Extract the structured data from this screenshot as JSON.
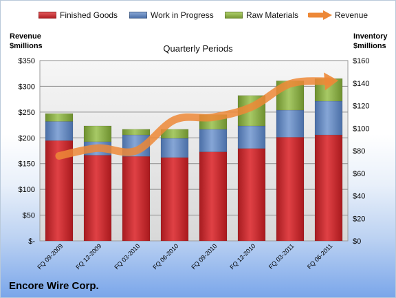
{
  "chart_data": {
    "type": "bar",
    "stacked": true,
    "title": "Quarterly Periods",
    "company": "Encore Wire Corp.",
    "left_axis_title": [
      "Revenue",
      "$millions"
    ],
    "right_axis_title": [
      "Inventory",
      "$millions"
    ],
    "categories": [
      "FQ 09-2009",
      "FQ 12-2009",
      "FQ 03-2010",
      "FQ 06-2010",
      "FQ 09-2010",
      "FQ 12-2010",
      "FQ 03-2011",
      "FQ 06-2011"
    ],
    "y_left": {
      "min": 0,
      "max": 350,
      "ticks": [
        0,
        50,
        100,
        150,
        200,
        250,
        300,
        350
      ],
      "tick_labels": [
        "$-",
        "$50",
        "$100",
        "$150",
        "$200",
        "$250",
        "$300",
        "$350"
      ]
    },
    "y_right": {
      "min": 0,
      "max": 160,
      "ticks": [
        0,
        20,
        40,
        60,
        80,
        100,
        120,
        140,
        160
      ],
      "tick_labels": [
        "$0",
        "$20",
        "$40",
        "$60",
        "$80",
        "$100",
        "$120",
        "$140",
        "$160"
      ]
    },
    "series": [
      {
        "name": "Finished Goods",
        "axis": "right",
        "color": "#c0282b",
        "values": [
          89,
          76,
          75,
          74,
          79,
          82,
          92,
          94
        ]
      },
      {
        "name": "Work in Progress",
        "axis": "right",
        "color": "#5d82bb",
        "values": [
          17,
          12,
          19,
          17,
          20,
          20,
          24,
          30
        ]
      },
      {
        "name": "Raw Materials",
        "axis": "right",
        "color": "#8cad45",
        "values": [
          7,
          14,
          5,
          8,
          13,
          27,
          26,
          20
        ]
      },
      {
        "name": "Revenue",
        "type": "line",
        "axis": "left",
        "color": "#ed8837",
        "values": [
          165,
          180,
          175,
          235,
          240,
          260,
          305,
          310
        ]
      }
    ],
    "grid": true,
    "legend": "top"
  }
}
